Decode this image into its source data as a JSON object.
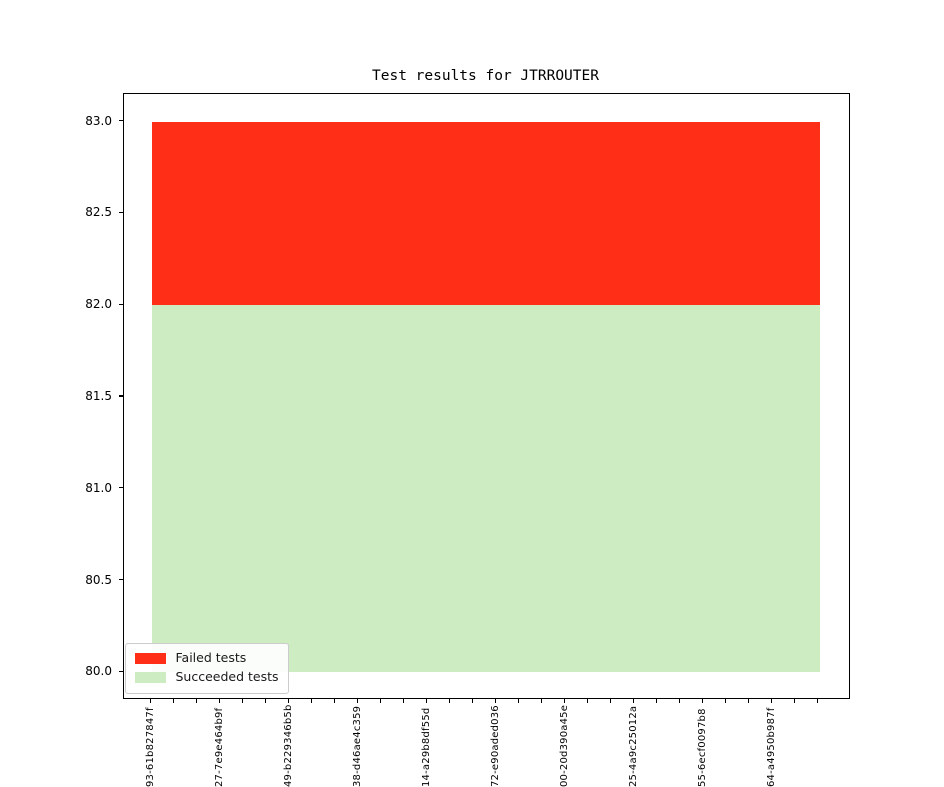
{
  "chart_data": {
    "type": "area",
    "title": "Test results for JTRROUTER",
    "x_count": 30,
    "xtick_label_every": 3,
    "xtick_labels": [
      "93-61b827847f",
      "27-7e9e464b9f",
      "49-b229346b5b",
      "38-d46ae4c359",
      "14-a29b8df55d",
      "72-e90aded036",
      "00-20d390a45e",
      "25-4a9c25012a",
      "55-6ecf0097b8",
      "64-a4950b987f"
    ],
    "ylim": [
      79.85,
      83.15
    ],
    "yticks": [
      "80.0",
      "80.5",
      "81.0",
      "81.5",
      "82.0",
      "82.5",
      "83.0"
    ],
    "series": [
      {
        "name": "Succeeded tests",
        "value": 82,
        "band_from": 80.0,
        "band_to": 82.0,
        "color": "#cdecc1"
      },
      {
        "name": "Failed tests",
        "value": 1,
        "band_from": 82.0,
        "band_to": 83.0,
        "color": "#ff2e16"
      }
    ],
    "legend": {
      "position": "lower-left",
      "entries": [
        {
          "label": "Failed tests",
          "color": "#ff2e16"
        },
        {
          "label": "Succeeded tests",
          "color": "#cdecc1"
        }
      ]
    },
    "grid": false
  }
}
